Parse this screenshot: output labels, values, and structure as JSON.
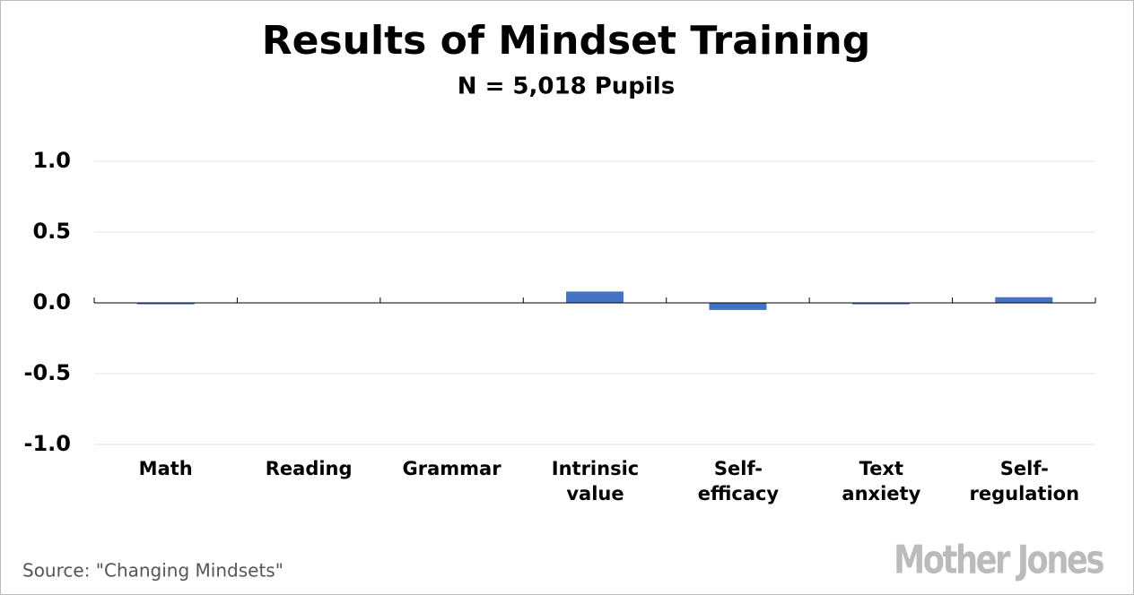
{
  "chart_data": {
    "type": "bar",
    "title": "Results of Mindset Training",
    "subtitle": "N = 5,018 Pupils",
    "categories": [
      "Math",
      "Reading",
      "Grammar",
      "Intrinsic value",
      "Self-efficacy",
      "Text anxiety",
      "Self-regulation"
    ],
    "values": [
      -0.01,
      0,
      0,
      0.08,
      -0.05,
      -0.01,
      0.04
    ],
    "color": "#4472c4",
    "ylim": [
      -1.0,
      1.0
    ],
    "yticks": [
      {
        "value": 1.0,
        "label": "1.0"
      },
      0.5,
      {
        "value": 0.0,
        "label": "0.0"
      },
      -0.5,
      {
        "value": -1.0,
        "label": "-1.0"
      }
    ],
    "grid": true,
    "source": "Source: \"Changing Mindsets\"",
    "logo": "Mother Jones"
  }
}
